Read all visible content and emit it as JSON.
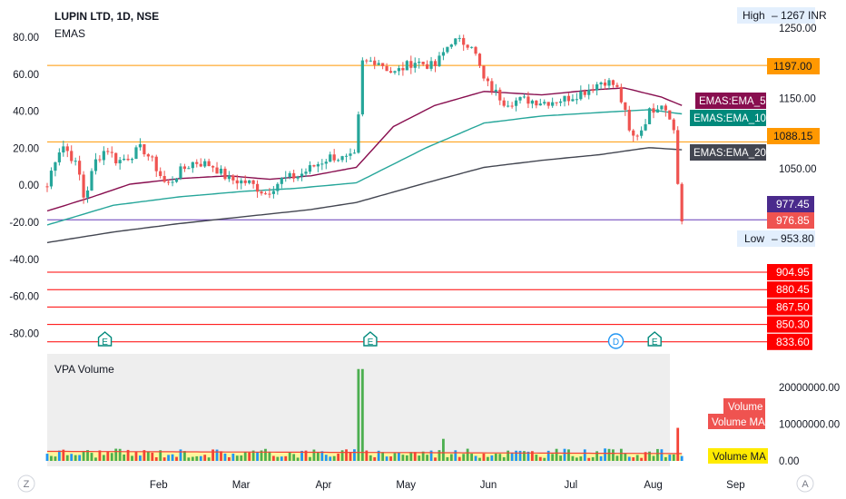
{
  "header": {
    "symbol_line": "LUPIN LTD, 1D, NSE",
    "indicator": "EMAS"
  },
  "volume_pane": {
    "title": "VPA Volume",
    "labels": {
      "volume": "Volume",
      "volume_ma": "Volume MA",
      "volume_ma_yellow": "Volume MA"
    },
    "ticks": [
      "20000000.00",
      "10000000.00",
      "0.00"
    ],
    "ytick_values": [
      20000000,
      10000000,
      0
    ]
  },
  "left_axis_ticks": [
    "80.00",
    "60.00",
    "40.00",
    "20.00",
    "0.00",
    "-20.00",
    "-40.00",
    "-60.00",
    "-80.00"
  ],
  "right_axis_ticks": [
    "1250.00",
    "1150.00",
    "1050.00"
  ],
  "x_axis_ticks": [
    "Feb",
    "Mar",
    "Apr",
    "May",
    "Jun",
    "Jul",
    "Aug",
    "Sep"
  ],
  "corner_buttons": {
    "left": "Z",
    "right": "A"
  },
  "markers": [
    {
      "kind": "earnings",
      "label": "E",
      "month": "Jan"
    },
    {
      "kind": "earnings",
      "label": "E",
      "month": "May"
    },
    {
      "kind": "dividend",
      "label": "D",
      "month": "Jul"
    },
    {
      "kind": "earnings",
      "label": "E",
      "month": "Aug"
    }
  ],
  "price_tags": {
    "high": {
      "label": "High",
      "value": "1267 INR"
    },
    "low": {
      "label": "Low",
      "value": "953.80"
    },
    "level_1197": "1197.00",
    "level_1088": "1088.15",
    "ema_50": "EMAS:EMA_50",
    "ema_100": "EMAS:EMA_100",
    "ema_200": "EMAS:EMA_200",
    "ema_value": "977.45",
    "last_price": "976.85",
    "supports": [
      "904.95",
      "880.45",
      "867.50",
      "850.30",
      "833.60"
    ]
  },
  "colors": {
    "up": "#26a69a",
    "down": "#ef5350",
    "ema_50": "#880e4f",
    "ema_100": "#26a69a",
    "ema_200": "#434651",
    "orange_level": "#ff9800",
    "purple_level": "#673ab7",
    "red_level": "#ff0000",
    "vol_bg": "#eeeeee",
    "vol_ma_fill": "#fff59d",
    "vol_green": "#4caf50",
    "vol_blue": "#2196f3",
    "vol_red": "#f44336"
  },
  "chart_data": {
    "type": "candlestick",
    "title": "LUPIN LTD, 1D, NSE",
    "price_range": [
      940,
      1280
    ],
    "horizontal_levels": [
      {
        "value": 1197.0,
        "color": "orange"
      },
      {
        "value": 1088.15,
        "color": "orange"
      },
      {
        "value": 977.45,
        "color": "purple"
      },
      {
        "value": 904.95,
        "color": "red"
      },
      {
        "value": 880.45,
        "color": "red"
      },
      {
        "value": 867.5,
        "color": "red"
      },
      {
        "value": 850.3,
        "color": "red"
      },
      {
        "value": 833.6,
        "color": "red"
      }
    ],
    "close_anchors": [
      {
        "month": 0.0,
        "close": 1025
      },
      {
        "month": 0.08,
        "close": 1060
      },
      {
        "month": 0.18,
        "close": 1085
      },
      {
        "month": 0.28,
        "close": 1070
      },
      {
        "month": 0.38,
        "close": 1048
      },
      {
        "month": 0.45,
        "close": 1005
      },
      {
        "month": 0.58,
        "close": 1060
      },
      {
        "month": 0.72,
        "close": 1080
      },
      {
        "month": 0.85,
        "close": 1060
      },
      {
        "month": 1.0,
        "close": 1068
      },
      {
        "month": 1.15,
        "close": 1080
      },
      {
        "month": 1.28,
        "close": 1060
      },
      {
        "month": 1.45,
        "close": 1025
      },
      {
        "month": 1.6,
        "close": 1045
      },
      {
        "month": 1.78,
        "close": 1060
      },
      {
        "month": 2.0,
        "close": 1055
      },
      {
        "month": 2.2,
        "close": 1035
      },
      {
        "month": 2.45,
        "close": 1030
      },
      {
        "month": 2.65,
        "close": 1015
      },
      {
        "month": 2.85,
        "close": 1035
      },
      {
        "month": 3.05,
        "close": 1040
      },
      {
        "month": 3.25,
        "close": 1055
      },
      {
        "month": 3.45,
        "close": 1068
      },
      {
        "month": 3.62,
        "close": 1063
      },
      {
        "month": 3.76,
        "close": 1068
      },
      {
        "month": 3.8,
        "close": 1200
      },
      {
        "month": 4.0,
        "close": 1205
      },
      {
        "month": 4.2,
        "close": 1185
      },
      {
        "month": 4.45,
        "close": 1203
      },
      {
        "month": 4.7,
        "close": 1195
      },
      {
        "month": 4.9,
        "close": 1232
      },
      {
        "month": 5.15,
        "close": 1228
      },
      {
        "month": 5.3,
        "close": 1175
      },
      {
        "month": 5.55,
        "close": 1145
      },
      {
        "month": 5.8,
        "close": 1148
      },
      {
        "month": 6.05,
        "close": 1145
      },
      {
        "month": 6.3,
        "close": 1150
      },
      {
        "month": 6.55,
        "close": 1162
      },
      {
        "month": 6.75,
        "close": 1176
      },
      {
        "month": 6.9,
        "close": 1168
      },
      {
        "month": 7.0,
        "close": 1135
      },
      {
        "month": 7.08,
        "close": 1092
      },
      {
        "month": 7.2,
        "close": 1104
      },
      {
        "month": 7.3,
        "close": 1130
      },
      {
        "month": 7.45,
        "close": 1145
      },
      {
        "month": 7.55,
        "close": 1128
      },
      {
        "month": 7.62,
        "close": 1095
      },
      {
        "month": 7.66,
        "close": 1010
      },
      {
        "month": 7.7,
        "close": 976.85
      }
    ],
    "ema_50": [
      {
        "month": 0.0,
        "value": 990
      },
      {
        "month": 0.55,
        "value": 1010
      },
      {
        "month": 1.0,
        "value": 1028
      },
      {
        "month": 1.6,
        "value": 1036
      },
      {
        "month": 2.2,
        "value": 1040
      },
      {
        "month": 2.7,
        "value": 1035
      },
      {
        "month": 3.2,
        "value": 1040
      },
      {
        "month": 3.75,
        "value": 1052
      },
      {
        "month": 4.2,
        "value": 1110
      },
      {
        "month": 4.7,
        "value": 1140
      },
      {
        "month": 5.3,
        "value": 1160
      },
      {
        "month": 6.0,
        "value": 1155
      },
      {
        "month": 6.6,
        "value": 1162
      },
      {
        "month": 7.0,
        "value": 1165
      },
      {
        "month": 7.45,
        "value": 1152
      },
      {
        "month": 7.7,
        "value": 1140
      }
    ],
    "ema_100": [
      {
        "month": 0.0,
        "value": 970
      },
      {
        "month": 0.8,
        "value": 998
      },
      {
        "month": 1.6,
        "value": 1010
      },
      {
        "month": 2.4,
        "value": 1018
      },
      {
        "month": 3.0,
        "value": 1022
      },
      {
        "month": 3.75,
        "value": 1030
      },
      {
        "month": 4.6,
        "value": 1080
      },
      {
        "month": 5.3,
        "value": 1115
      },
      {
        "month": 6.0,
        "value": 1125
      },
      {
        "month": 6.7,
        "value": 1130
      },
      {
        "month": 7.3,
        "value": 1134
      },
      {
        "month": 7.7,
        "value": 1128
      }
    ],
    "ema_200": [
      {
        "month": 0.0,
        "value": 945
      },
      {
        "month": 0.8,
        "value": 960
      },
      {
        "month": 1.6,
        "value": 972
      },
      {
        "month": 2.4,
        "value": 982
      },
      {
        "month": 3.2,
        "value": 992
      },
      {
        "month": 3.75,
        "value": 1002
      },
      {
        "month": 4.6,
        "value": 1030
      },
      {
        "month": 5.3,
        "value": 1052
      },
      {
        "month": 6.0,
        "value": 1062
      },
      {
        "month": 6.7,
        "value": 1070
      },
      {
        "month": 7.3,
        "value": 1080
      },
      {
        "month": 7.7,
        "value": 1077
      }
    ],
    "volume_spikes_millions": [
      {
        "month": 3.8,
        "volume": 25
      },
      {
        "month": 4.8,
        "volume": 6
      },
      {
        "month": 7.65,
        "volume": 9
      }
    ]
  }
}
